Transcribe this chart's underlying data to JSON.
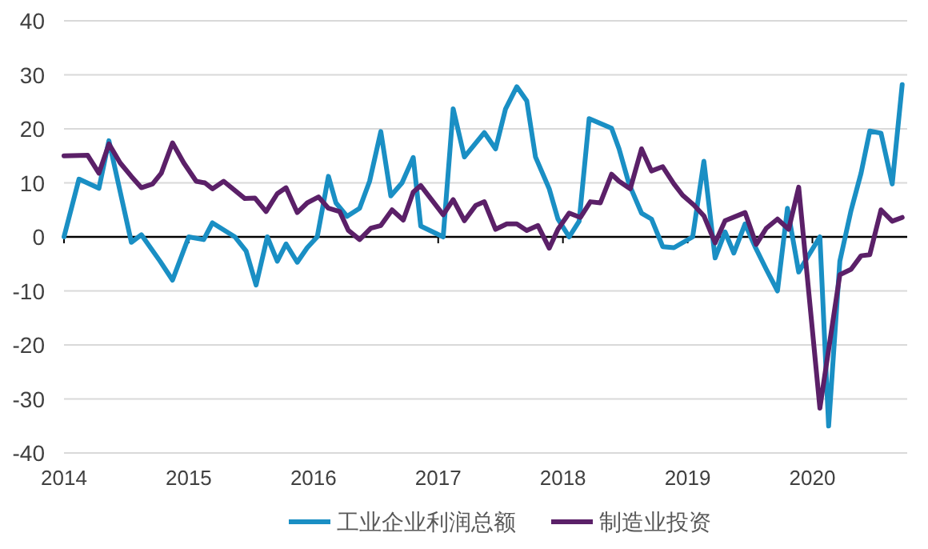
{
  "chart_data": {
    "type": "line",
    "xlim": [
      2014,
      2020.76
    ],
    "xticks": [
      2014,
      2015,
      2016,
      2017,
      2018,
      2019,
      2020
    ],
    "ylim": [
      -40,
      40
    ],
    "yticks": [
      -40,
      -30,
      -20,
      -10,
      0,
      10,
      20,
      30,
      40
    ],
    "grid": "y",
    "legend": "bottom",
    "marker": "none",
    "line_style": "solid",
    "series": [
      {
        "name": "工业企业利润总额",
        "color": "#1a8fc4",
        "x": [
          2014,
          2014.12,
          2014.28,
          2014.36,
          2014.54,
          2014.62,
          2014.77,
          2014.87,
          2015,
          2015.12,
          2015.19,
          2015.37,
          2015.46,
          2015.54,
          2015.63,
          2015.71,
          2015.78,
          2015.87,
          2015.95,
          2016.03,
          2016.12,
          2016.18,
          2016.27,
          2016.37,
          2016.45,
          2016.54,
          2016.62,
          2016.71,
          2016.8,
          2016.86,
          2017.04,
          2017.12,
          2017.21,
          2017.37,
          2017.46,
          2017.54,
          2017.63,
          2017.71,
          2017.78,
          2017.89,
          2017.96,
          2018.05,
          2018.13,
          2018.21,
          2018.39,
          2018.45,
          2018.53,
          2018.63,
          2018.71,
          2018.8,
          2018.89,
          2019.04,
          2019.13,
          2019.22,
          2019.3,
          2019.37,
          2019.46,
          2019.54,
          2019.63,
          2019.72,
          2019.8,
          2019.89,
          2019.97,
          2020.06,
          2020.13,
          2020.22,
          2020.31,
          2020.39,
          2020.46,
          2020.55,
          2020.64,
          2020.72
        ],
        "values": [
          0,
          10.7,
          9,
          17.8,
          -1,
          0.4,
          -4.5,
          -8,
          0,
          -0.5,
          2.6,
          0,
          -2.6,
          -8.9,
          0,
          -4.5,
          -1.3,
          -4.7,
          -2,
          0,
          11.2,
          6.3,
          3.8,
          5.3,
          10.3,
          19.5,
          7.6,
          10,
          14.7,
          2,
          0,
          23.7,
          14.8,
          19.3,
          16.3,
          23.7,
          27.8,
          25.2,
          14.8,
          8.9,
          3.3,
          0,
          2.9,
          21.9,
          20.1,
          16.3,
          9.8,
          4.4,
          3.3,
          -1.8,
          -2,
          0,
          14,
          -3.9,
          0.9,
          -3,
          2.4,
          -1.8,
          -6,
          -10,
          5.3,
          -6.5,
          -3.4,
          0,
          -35,
          -4.5,
          4.9,
          11.8,
          19.6,
          19.2,
          9.8,
          28.2
        ]
      },
      {
        "name": "制造业投资",
        "color": "#5b2068",
        "x": [
          2014,
          2014.19,
          2014.28,
          2014.36,
          2014.45,
          2014.54,
          2014.62,
          2014.71,
          2014.78,
          2014.87,
          2014.96,
          2015.06,
          2015.13,
          2015.19,
          2015.28,
          2015.45,
          2015.53,
          2015.62,
          2015.71,
          2015.78,
          2015.87,
          2015.95,
          2016.04,
          2016.12,
          2016.21,
          2016.28,
          2016.37,
          2016.46,
          2016.54,
          2016.63,
          2016.72,
          2016.8,
          2016.86,
          2017.04,
          2017.12,
          2017.21,
          2017.3,
          2017.37,
          2017.46,
          2017.55,
          2017.63,
          2017.71,
          2017.8,
          2017.89,
          2017.96,
          2018.05,
          2018.14,
          2018.22,
          2018.3,
          2018.39,
          2018.45,
          2018.54,
          2018.63,
          2018.71,
          2018.8,
          2018.89,
          2018.96,
          2019.05,
          2019.13,
          2019.22,
          2019.3,
          2019.46,
          2019.55,
          2019.63,
          2019.72,
          2019.81,
          2019.89,
          2020.06,
          2020.22,
          2020.31,
          2020.39,
          2020.46,
          2020.55,
          2020.64,
          2020.72
        ],
        "values": [
          15,
          15.1,
          11.8,
          17.2,
          13.7,
          11.2,
          9.1,
          9.8,
          11.8,
          17.4,
          13.7,
          10.3,
          10,
          8.9,
          10.3,
          7.1,
          7.2,
          4.7,
          8,
          9.1,
          4.5,
          6.3,
          7.4,
          5.3,
          4.7,
          1.2,
          -0.5,
          1.6,
          2.1,
          5,
          3.1,
          8.3,
          9.5,
          4.1,
          6.9,
          3,
          5.8,
          6.5,
          1.4,
          2.4,
          2.4,
          1.2,
          2.1,
          -2.1,
          1.4,
          4.4,
          3.6,
          6.5,
          6.3,
          11.6,
          10.3,
          8.9,
          16.3,
          12.2,
          13,
          9.8,
          7.7,
          5.9,
          3.9,
          -1.1,
          3,
          4.5,
          -1.4,
          1.6,
          3.3,
          1.4,
          9.2,
          -31.7,
          -7,
          -6,
          -3.5,
          -3.3,
          5,
          2.9,
          3.6
        ]
      }
    ]
  }
}
